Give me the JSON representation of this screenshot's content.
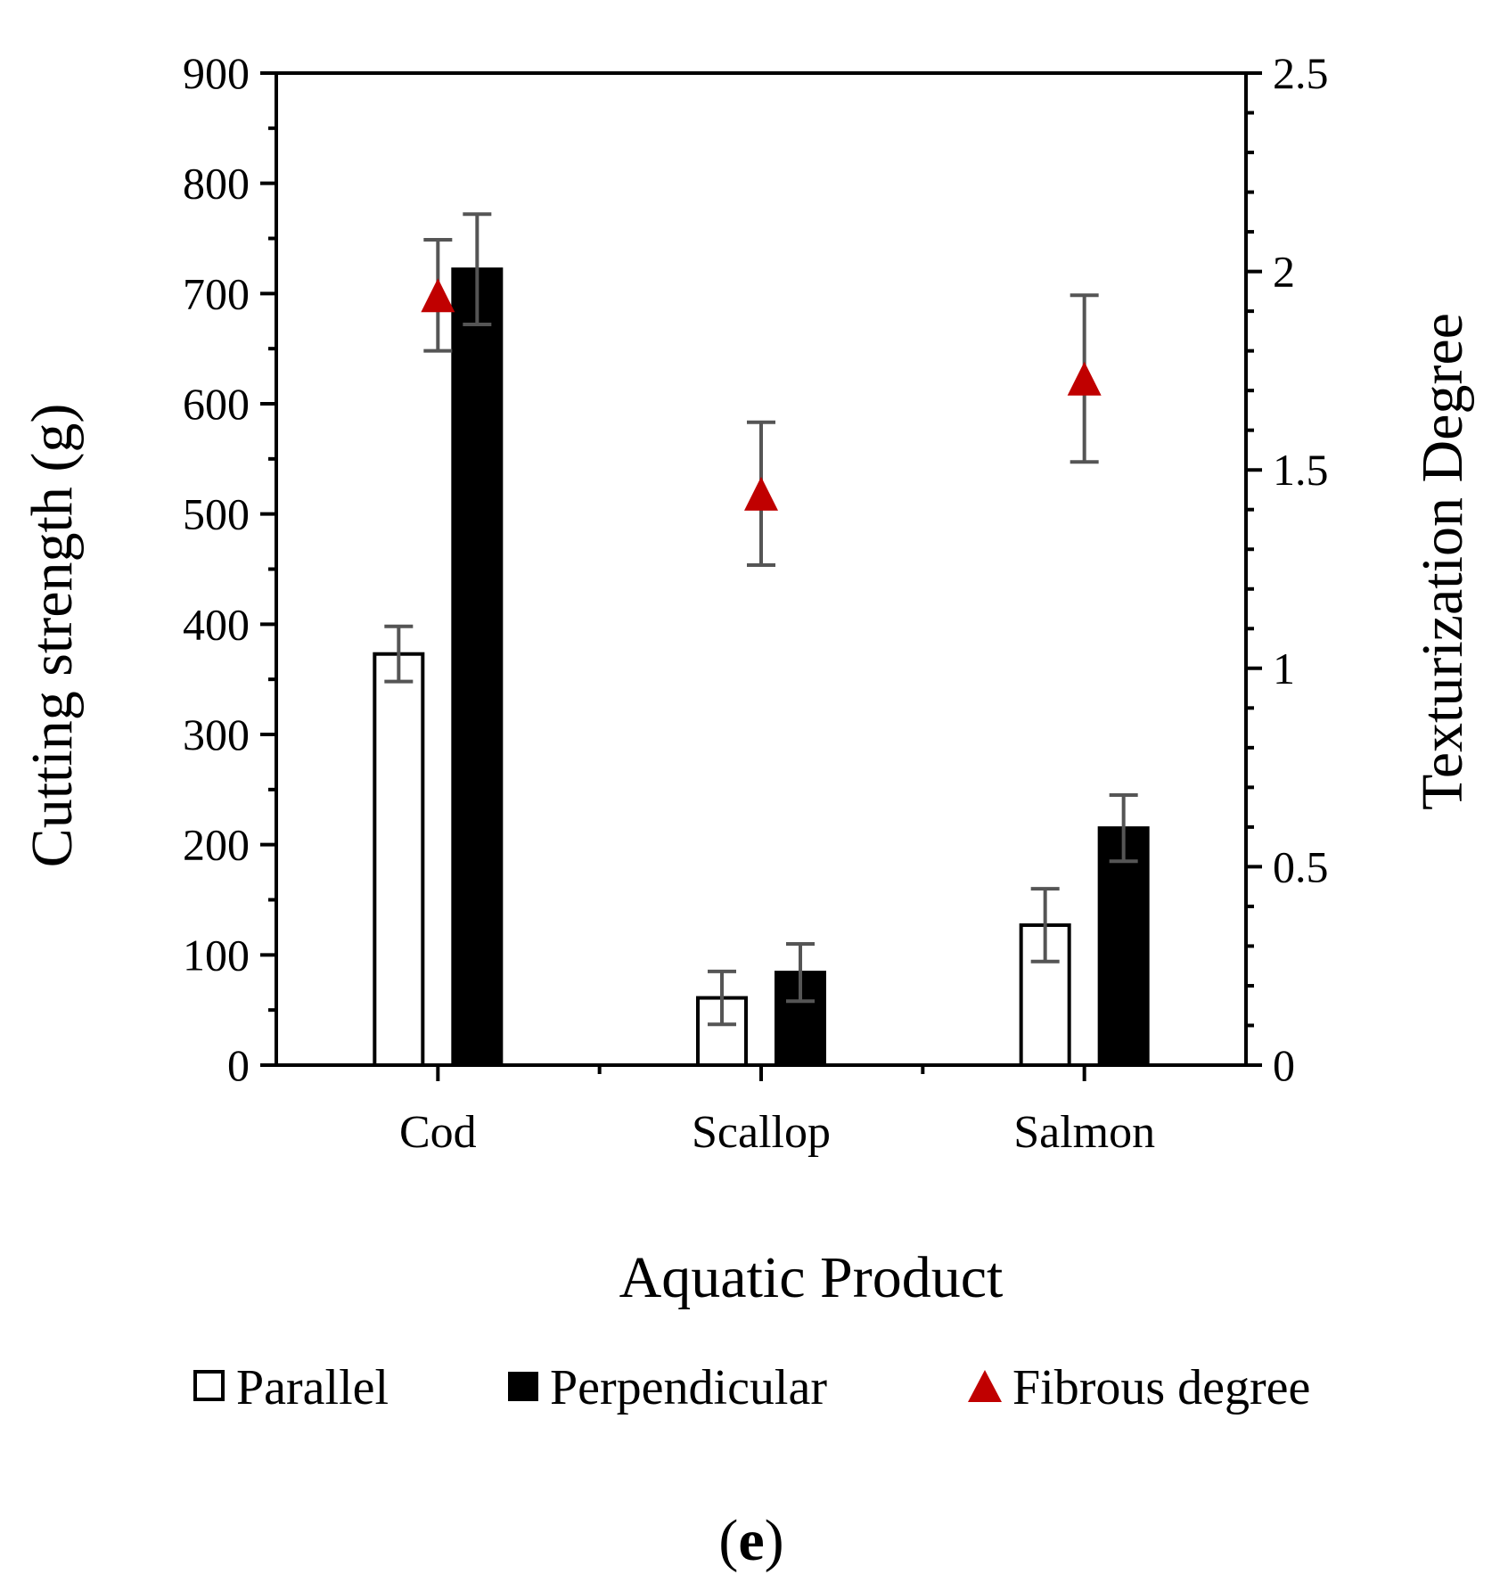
{
  "chart_data": {
    "type": "bar",
    "title": "",
    "panel_label": {
      "open": "(",
      "letter": "e",
      "close": ")"
    },
    "xlabel": "Aquatic Product",
    "ylabel": "Cutting strength (g)",
    "y2label": "Texturization Degree",
    "categories": [
      "Cod",
      "Scallop",
      "Salmon"
    ],
    "ylim": [
      0,
      900
    ],
    "yticks": [
      0,
      100,
      200,
      300,
      400,
      500,
      600,
      700,
      800,
      900
    ],
    "y2lim": [
      0,
      2.5
    ],
    "y2ticks": [
      0,
      0.5,
      1,
      1.5,
      2,
      2.5
    ],
    "y2tick_labels": [
      "0",
      "0.5",
      "1",
      "1.5",
      "2",
      "2.5"
    ],
    "series": [
      {
        "name": "Parallel",
        "axis": "left",
        "kind": "bar",
        "fill": "#ffffff",
        "stroke": "#000000",
        "values": [
          373,
          61,
          127
        ],
        "errors": [
          25,
          24,
          33
        ]
      },
      {
        "name": "Perpendicular",
        "axis": "left",
        "kind": "bar",
        "fill": "#000000",
        "stroke": "#000000",
        "values": [
          722,
          84,
          215
        ],
        "errors": [
          50,
          26,
          30
        ]
      },
      {
        "name": "Fibrous degree",
        "axis": "right",
        "kind": "marker",
        "marker": "triangle",
        "fill": "#c00000",
        "values": [
          1.94,
          1.44,
          1.73
        ],
        "errors": [
          0.14,
          0.18,
          0.21
        ]
      }
    ],
    "error_bar_color": "#555555",
    "legend_position": "bottom",
    "grid": false
  }
}
